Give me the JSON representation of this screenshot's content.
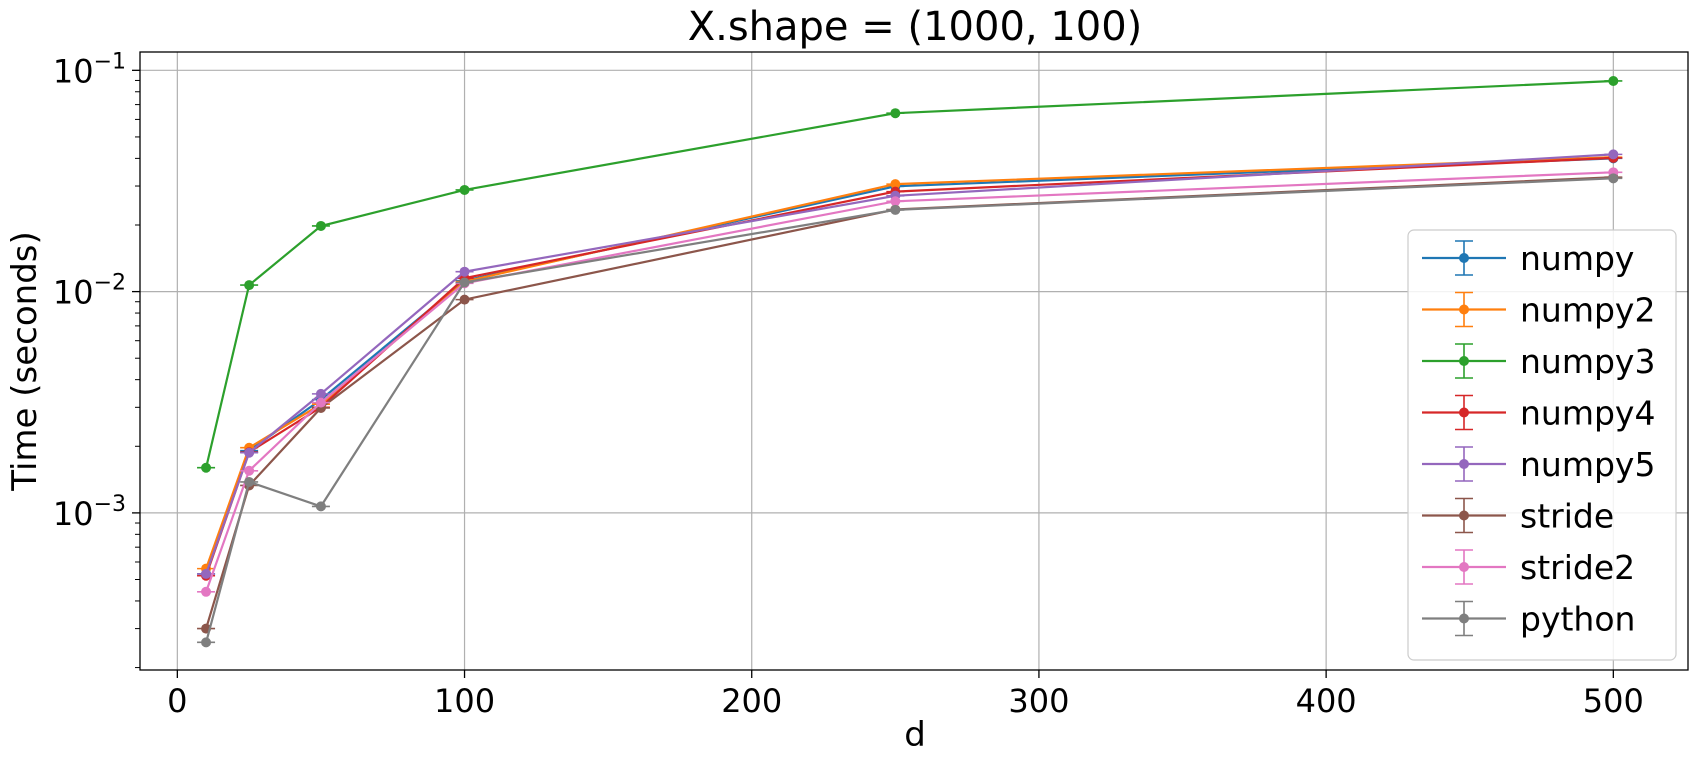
{
  "chart_data": {
    "type": "line",
    "title": "X.shape = (1000, 100)",
    "xlabel": "d",
    "ylabel": "Time (seconds)",
    "xlim": [
      -13,
      526
    ],
    "ylim": [
      0.000195,
      0.121
    ],
    "yscale": "log",
    "grid": true,
    "legend_position": "right",
    "x_ticks": [
      0,
      100,
      200,
      300,
      400,
      500
    ],
    "y_ticks": [
      {
        "value": 0.001,
        "base": "10",
        "exp": "−3"
      },
      {
        "value": 0.01,
        "base": "10",
        "exp": "−2"
      },
      {
        "value": 0.1,
        "base": "10",
        "exp": "−1"
      }
    ],
    "x": [
      10,
      25,
      50,
      100,
      250,
      500
    ],
    "series": [
      {
        "name": "numpy",
        "color": "#1f77b4",
        "values": [
          0.00053,
          0.00191,
          0.00325,
          0.0112,
          0.0299,
          0.04
        ]
      },
      {
        "name": "numpy2",
        "color": "#ff7f0e",
        "values": [
          0.00056,
          0.00197,
          0.0031,
          0.0111,
          0.0306,
          0.0405
        ]
      },
      {
        "name": "numpy3",
        "color": "#2ca02c",
        "values": [
          0.0016,
          0.0107,
          0.0198,
          0.0288,
          0.064,
          0.0895
        ]
      },
      {
        "name": "numpy4",
        "color": "#d62728",
        "values": [
          0.00052,
          0.00188,
          0.003,
          0.0115,
          0.0283,
          0.0402
        ]
      },
      {
        "name": "numpy5",
        "color": "#9467bd",
        "values": [
          0.00053,
          0.00187,
          0.00345,
          0.0123,
          0.0271,
          0.0417
        ]
      },
      {
        "name": "stride",
        "color": "#8c564b",
        "values": [
          0.0003,
          0.00133,
          0.00298,
          0.0092,
          0.0235,
          0.0329
        ]
      },
      {
        "name": "stride2",
        "color": "#e377c2",
        "values": [
          0.00044,
          0.00155,
          0.00315,
          0.0109,
          0.0256,
          0.0346
        ]
      },
      {
        "name": "python",
        "color": "#7f7f7f",
        "values": [
          0.00026,
          0.00138,
          0.00107,
          0.011,
          0.0234,
          0.0325
        ]
      }
    ]
  }
}
